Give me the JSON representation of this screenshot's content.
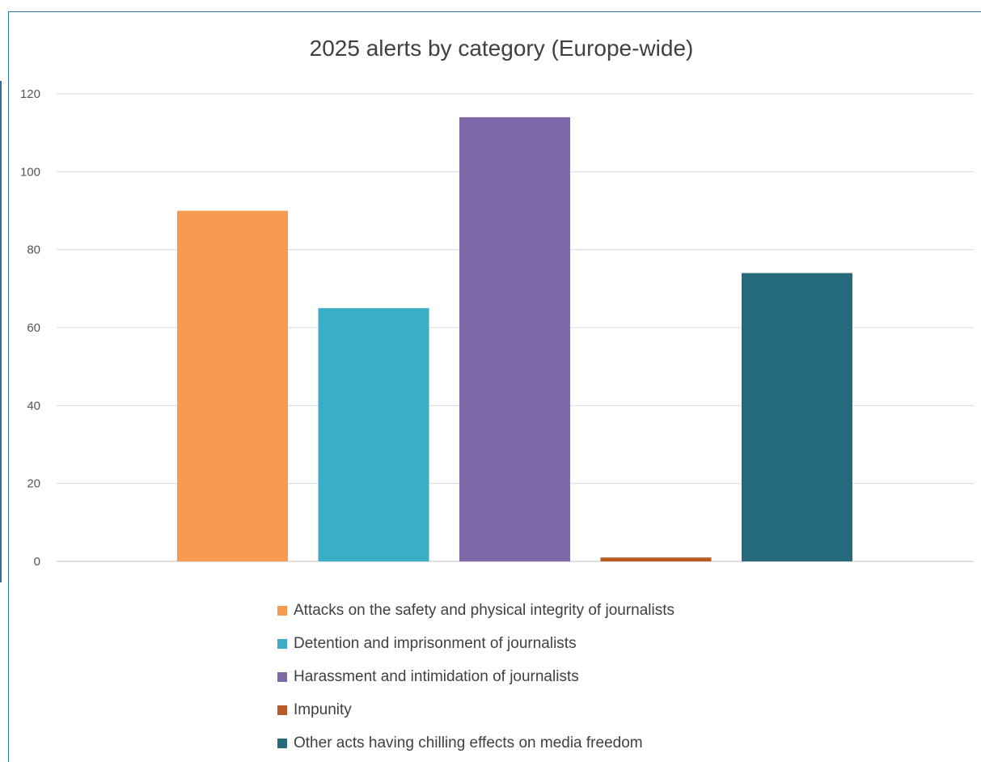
{
  "chart_data": {
    "type": "bar",
    "title": "2025 alerts by category (Europe-wide)",
    "xlabel": "",
    "ylabel": "",
    "ylim": [
      0,
      120
    ],
    "yticks": [
      0,
      20,
      40,
      60,
      80,
      100,
      120
    ],
    "grid": true,
    "legend_position": "bottom",
    "categories": [
      "Attacks on the safety and physical integrity of journalists",
      "Detention and imprisonment of journalists",
      "Harassment and intimidation of journalists",
      "Impunity",
      "Other acts having chilling effects on media freedom"
    ],
    "values": [
      90,
      65,
      114,
      1,
      74
    ],
    "colors": [
      "#f79a52",
      "#3aadc7",
      "#7d68a8",
      "#b85a23",
      "#256a7a"
    ]
  }
}
